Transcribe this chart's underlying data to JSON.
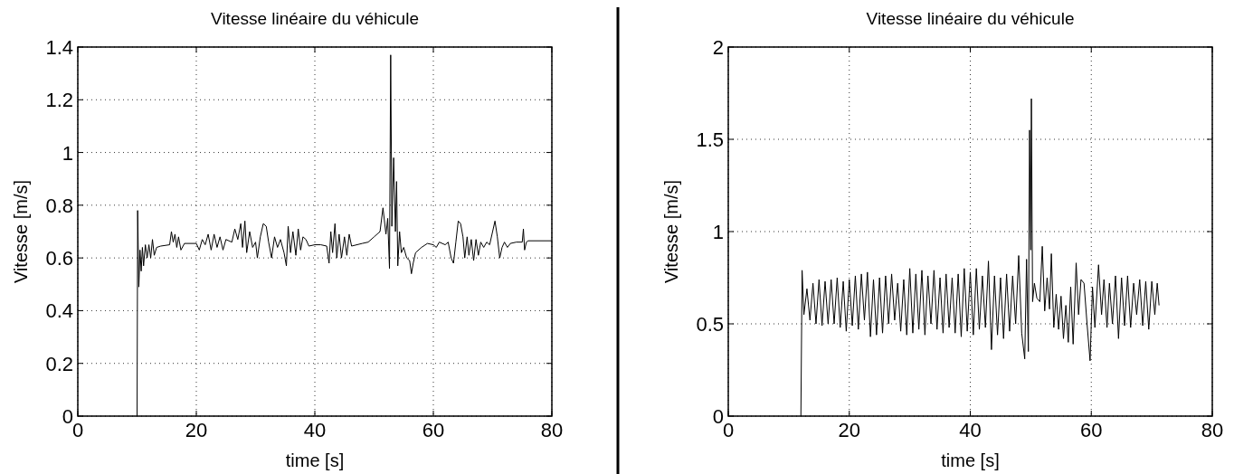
{
  "chart_data": [
    {
      "type": "line",
      "title": "Vitesse linéaire du véhicule",
      "xlabel": "time [s]",
      "ylabel": "Vitesse  [m/s]",
      "xlim": [
        0,
        80
      ],
      "xticks": [
        0,
        20,
        40,
        60,
        80
      ],
      "ylim": [
        0,
        1.4
      ],
      "yticks": [
        0,
        0.2,
        0.4,
        0.6,
        0.8,
        1,
        1.2,
        1.4
      ],
      "grid": true,
      "series": [
        {
          "color": "#000000",
          "x": [
            10,
            10.1,
            10.3,
            10.5,
            10.7,
            10.9,
            11.1,
            11.4,
            11.7,
            12,
            12.3,
            12.6,
            12.9,
            13.3,
            14,
            15.5,
            15.8,
            16.1,
            16.4,
            16.7,
            17,
            17.4,
            18,
            20,
            20.5,
            21,
            21.5,
            22,
            22.5,
            23,
            23.5,
            24,
            24.5,
            25,
            26,
            26.5,
            27,
            27.5,
            27.8,
            28.2,
            28.5,
            29,
            29.5,
            30,
            30.3,
            30.8,
            31.3,
            31.8,
            32.2,
            32.7,
            33.2,
            33.7,
            34.2,
            34.8,
            35.2,
            35.5,
            35.9,
            36.3,
            36.8,
            37.2,
            37.6,
            38,
            38.5,
            39,
            40,
            41,
            42,
            42.4,
            42.7,
            43,
            43.4,
            43.7,
            44.1,
            44.5,
            45,
            45.4,
            45.8,
            46.2,
            48,
            49,
            50,
            51,
            51.5,
            52,
            52.3,
            52.6,
            52.8,
            53,
            53.3,
            53.6,
            53.8,
            54,
            54.3,
            54.6,
            55,
            55.5,
            56,
            56.3,
            56.6,
            57,
            58,
            59,
            60,
            60.5,
            61,
            62,
            62.5,
            63,
            63.4,
            63.8,
            64.2,
            64.6,
            65,
            65.3,
            65.7,
            66,
            66.4,
            66.8,
            67.2,
            67.6,
            68,
            68.5,
            69,
            69.5,
            70,
            70.4,
            70.8,
            71.2,
            71.6,
            72,
            72.5,
            73,
            74,
            75,
            75.2,
            75.4,
            75.7,
            76,
            80
          ],
          "values": [
            0,
            0.78,
            0.49,
            0.63,
            0.55,
            0.64,
            0.57,
            0.65,
            0.6,
            0.65,
            0.6,
            0.67,
            0.61,
            0.64,
            0.645,
            0.65,
            0.7,
            0.66,
            0.69,
            0.64,
            0.68,
            0.63,
            0.655,
            0.655,
            0.63,
            0.67,
            0.65,
            0.69,
            0.63,
            0.69,
            0.64,
            0.68,
            0.63,
            0.67,
            0.66,
            0.71,
            0.67,
            0.73,
            0.64,
            0.74,
            0.62,
            0.7,
            0.64,
            0.66,
            0.6,
            0.68,
            0.73,
            0.72,
            0.66,
            0.6,
            0.68,
            0.64,
            0.67,
            0.62,
            0.57,
            0.72,
            0.62,
            0.7,
            0.61,
            0.71,
            0.63,
            0.68,
            0.67,
            0.645,
            0.65,
            0.65,
            0.645,
            0.58,
            0.7,
            0.62,
            0.73,
            0.6,
            0.69,
            0.6,
            0.68,
            0.61,
            0.69,
            0.645,
            0.655,
            0.66,
            0.68,
            0.7,
            0.79,
            0.69,
            0.75,
            0.56,
            1.37,
            0.72,
            0.98,
            0.7,
            0.89,
            0.57,
            0.7,
            0.62,
            0.64,
            0.6,
            0.59,
            0.54,
            0.58,
            0.62,
            0.64,
            0.655,
            0.65,
            0.64,
            0.66,
            0.65,
            0.66,
            0.6,
            0.58,
            0.66,
            0.74,
            0.73,
            0.68,
            0.6,
            0.68,
            0.61,
            0.67,
            0.59,
            0.67,
            0.61,
            0.66,
            0.64,
            0.66,
            0.65,
            0.7,
            0.74,
            0.68,
            0.6,
            0.64,
            0.66,
            0.64,
            0.655,
            0.66,
            0.66,
            0.71,
            0.63,
            0.66,
            0.665,
            0.665
          ]
        }
      ]
    },
    {
      "type": "line",
      "title": "Vitesse linéaire du véhicule",
      "xlabel": "time [s]",
      "ylabel": "Vitesse  [m/s]",
      "xlim": [
        0,
        80
      ],
      "xticks": [
        0,
        20,
        40,
        60,
        80
      ],
      "ylim": [
        0,
        2
      ],
      "yticks": [
        0,
        0.5,
        1,
        1.5,
        2
      ],
      "grid": true,
      "series": [
        {
          "color": "#000000",
          "x": [
            12,
            12.2,
            12.5,
            13,
            13.5,
            14,
            14.5,
            15,
            15.5,
            16,
            16.5,
            17,
            17.5,
            18,
            18.5,
            19,
            19.5,
            20,
            20.5,
            21,
            21.5,
            22,
            22.5,
            23,
            23.5,
            24,
            24.5,
            25,
            25.5,
            26,
            26.5,
            27,
            27.5,
            28,
            28.5,
            29,
            29.5,
            30,
            30.5,
            31,
            31.5,
            32,
            32.5,
            33,
            33.5,
            34,
            34.5,
            35,
            35.5,
            36,
            36.5,
            37,
            37.5,
            38,
            38.5,
            39,
            39.5,
            40,
            40.5,
            41,
            41.5,
            42,
            42.5,
            43,
            43.5,
            44,
            44.5,
            45,
            45.5,
            46,
            46.5,
            47,
            47.5,
            48,
            48.5,
            49,
            49.3,
            49.6,
            49.8,
            50,
            50.1,
            50.3,
            50.6,
            51,
            51.5,
            51.9,
            52.3,
            52.7,
            53.1,
            53.4,
            53.8,
            54.2,
            54.6,
            55,
            55.4,
            55.8,
            56.2,
            56.6,
            57,
            57.5,
            57.9,
            58.3,
            58.8,
            59.3,
            59.8,
            60.2,
            60.6,
            61.2,
            61.7,
            62.1,
            62.6,
            63,
            63.5,
            64,
            64.5,
            65,
            65.5,
            66,
            66.5,
            67,
            67.5,
            68,
            68.5,
            69,
            69.5,
            70,
            70.5,
            70.9,
            71.2
          ],
          "values": [
            0,
            0.79,
            0.55,
            0.69,
            0.52,
            0.72,
            0.5,
            0.74,
            0.49,
            0.73,
            0.5,
            0.74,
            0.5,
            0.75,
            0.48,
            0.73,
            0.46,
            0.74,
            0.49,
            0.76,
            0.47,
            0.77,
            0.52,
            0.78,
            0.43,
            0.74,
            0.44,
            0.75,
            0.45,
            0.76,
            0.5,
            0.77,
            0.52,
            0.72,
            0.46,
            0.74,
            0.44,
            0.8,
            0.45,
            0.77,
            0.47,
            0.79,
            0.44,
            0.76,
            0.5,
            0.79,
            0.47,
            0.75,
            0.45,
            0.77,
            0.48,
            0.75,
            0.45,
            0.77,
            0.43,
            0.8,
            0.46,
            0.78,
            0.44,
            0.8,
            0.47,
            0.76,
            0.48,
            0.84,
            0.36,
            0.76,
            0.44,
            0.75,
            0.42,
            0.77,
            0.46,
            0.76,
            0.5,
            0.87,
            0.45,
            0.31,
            0.85,
            0.35,
            1.55,
            0.9,
            1.72,
            0.62,
            0.72,
            0.64,
            0.62,
            0.92,
            0.57,
            0.75,
            0.58,
            0.88,
            0.48,
            0.66,
            0.47,
            0.65,
            0.42,
            0.6,
            0.4,
            0.7,
            0.39,
            0.83,
            0.55,
            0.74,
            0.72,
            0.5,
            0.3,
            0.7,
            0.48,
            0.82,
            0.55,
            0.74,
            0.48,
            0.72,
            0.5,
            0.76,
            0.42,
            0.75,
            0.49,
            0.76,
            0.48,
            0.72,
            0.55,
            0.74,
            0.49,
            0.73,
            0.47,
            0.73,
            0.55,
            0.72,
            0.6
          ]
        }
      ]
    }
  ]
}
